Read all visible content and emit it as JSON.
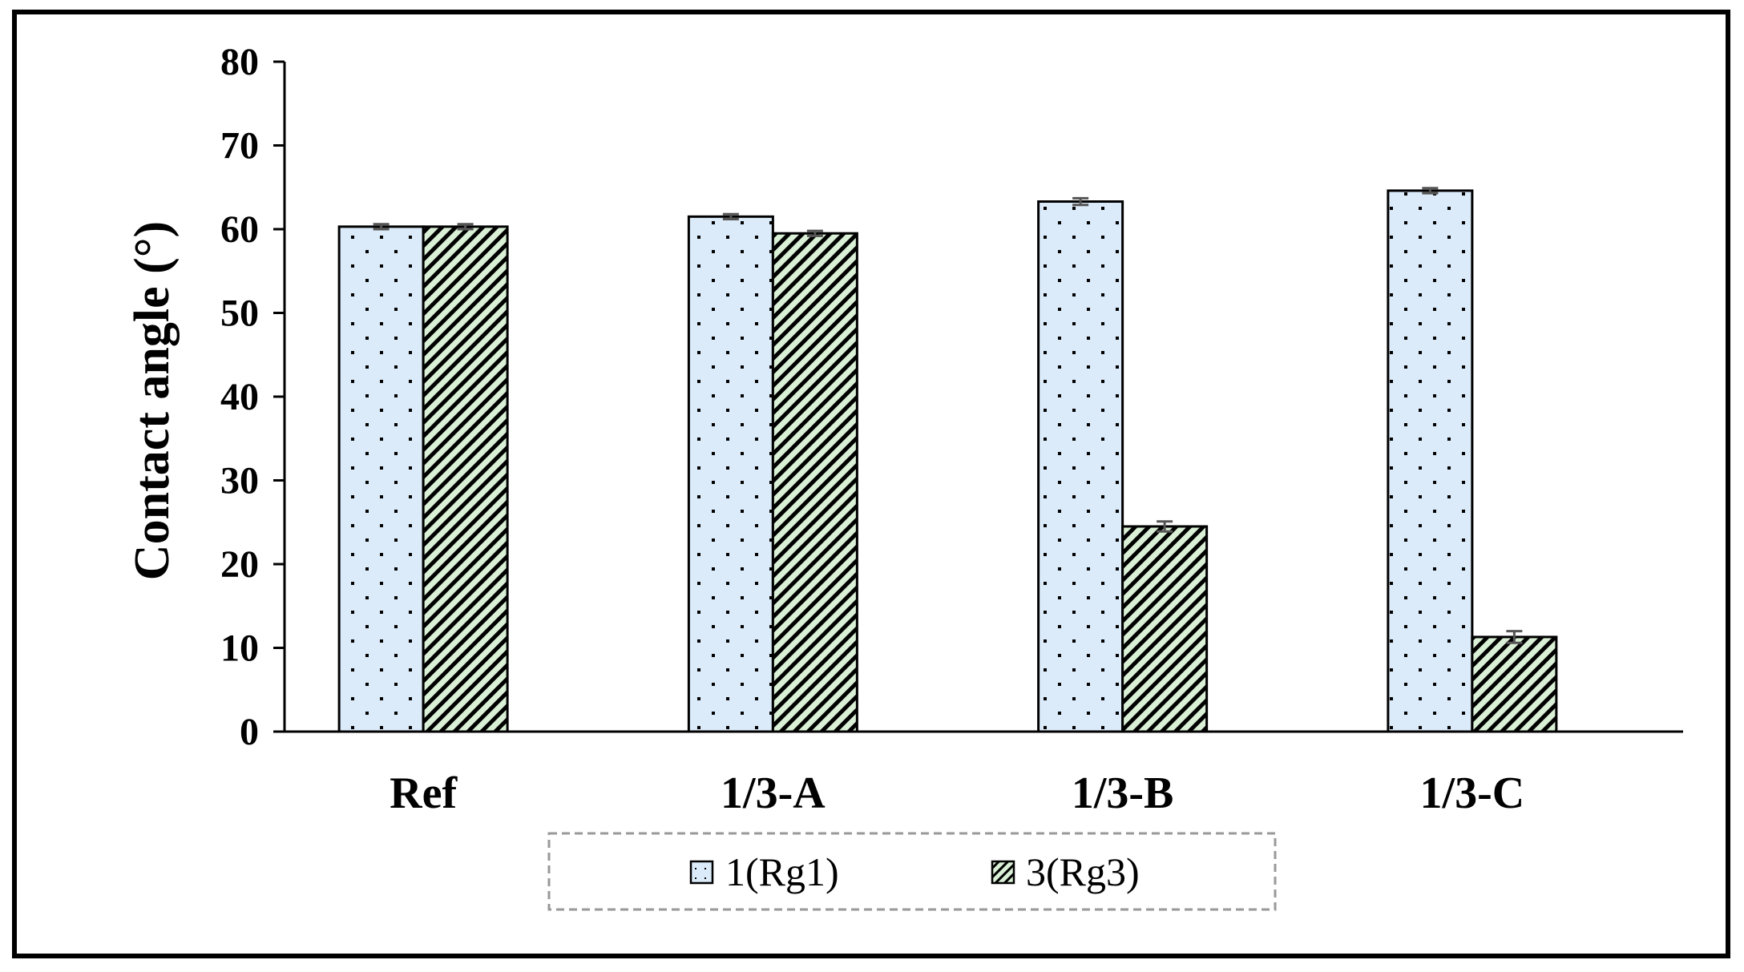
{
  "chart_data": {
    "type": "bar",
    "title": "",
    "xlabel": "",
    "ylabel": "Contact angle (°)",
    "ylim": [
      0,
      80
    ],
    "yticks": [
      "0",
      "10",
      "20",
      "30",
      "40",
      "50",
      "60",
      "70",
      "80"
    ],
    "categories": [
      "Ref",
      "1/3-A",
      "1/3-B",
      "1/3-C"
    ],
    "series": [
      {
        "name": "1(Rg1)",
        "values": [
          60.3,
          61.5,
          63.3,
          64.6
        ],
        "errors": [
          0.3,
          0.3,
          0.4,
          0.3
        ],
        "color": "#dcebfa",
        "pattern": "dots"
      },
      {
        "name": "3(Rg3)",
        "values": [
          60.3,
          59.5,
          24.5,
          11.3
        ],
        "errors": [
          0.3,
          0.3,
          0.6,
          0.7
        ],
        "color": "#daf0d6",
        "pattern": "diagonal-hatch"
      }
    ],
    "legend_position": "bottom",
    "grid": false
  }
}
